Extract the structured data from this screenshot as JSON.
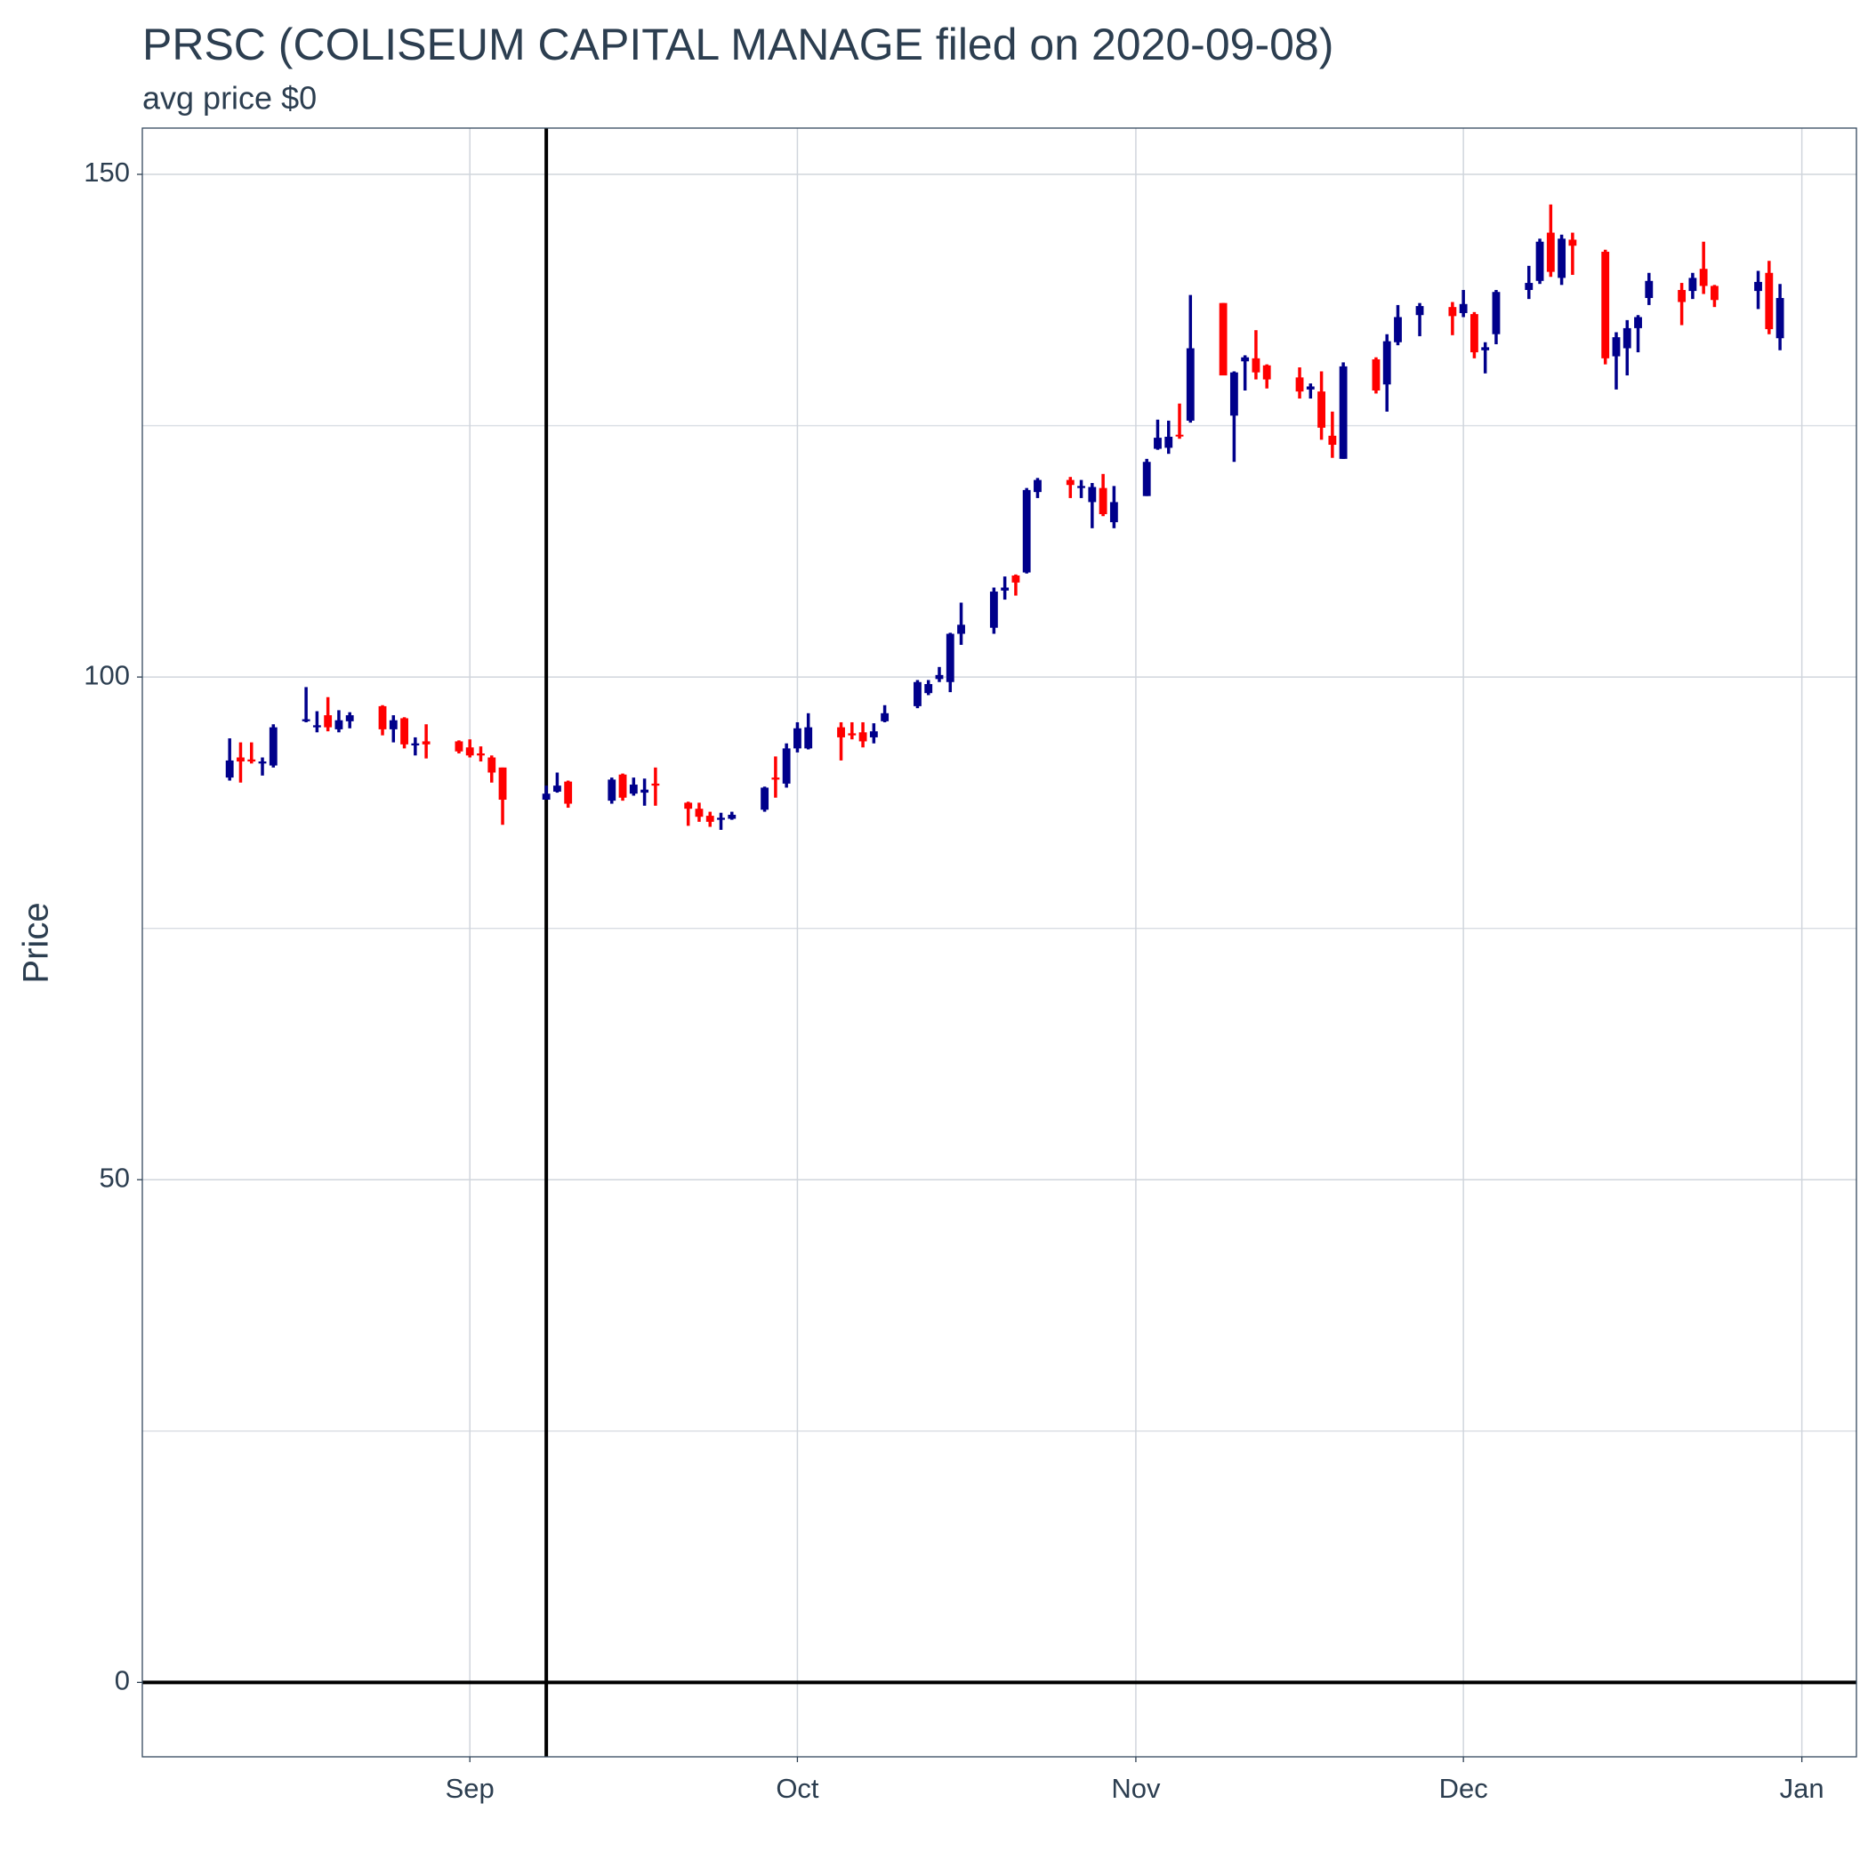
{
  "chart_data": {
    "type": "candlestick",
    "title": "PRSC (COLISEUM CAPITAL MANAGE filed on 2020-09-08)",
    "subtitle": "avg price $0",
    "y_label": "Price",
    "up_color": "#00008b",
    "down_color": "#ff0000",
    "x": [
      "2020-08-10",
      "2020-08-11",
      "2020-08-12",
      "2020-08-13",
      "2020-08-14",
      "2020-08-17",
      "2020-08-18",
      "2020-08-19",
      "2020-08-20",
      "2020-08-21",
      "2020-08-24",
      "2020-08-25",
      "2020-08-26",
      "2020-08-27",
      "2020-08-28",
      "2020-08-31",
      "2020-09-01",
      "2020-09-02",
      "2020-09-03",
      "2020-09-04",
      "2020-09-08",
      "2020-09-09",
      "2020-09-10",
      "2020-09-14",
      "2020-09-15",
      "2020-09-16",
      "2020-09-17",
      "2020-09-18",
      "2020-09-21",
      "2020-09-22",
      "2020-09-23",
      "2020-09-24",
      "2020-09-25",
      "2020-09-28",
      "2020-09-29",
      "2020-09-30",
      "2020-10-01",
      "2020-10-02",
      "2020-10-05",
      "2020-10-06",
      "2020-10-07",
      "2020-10-08",
      "2020-10-09",
      "2020-10-12",
      "2020-10-13",
      "2020-10-14",
      "2020-10-15",
      "2020-10-16",
      "2020-10-19",
      "2020-10-20",
      "2020-10-21",
      "2020-10-22",
      "2020-10-23",
      "2020-10-26",
      "2020-10-27",
      "2020-10-28",
      "2020-10-29",
      "2020-10-30",
      "2020-11-02",
      "2020-11-03",
      "2020-11-04",
      "2020-11-05",
      "2020-11-06",
      "2020-11-09",
      "2020-11-10",
      "2020-11-11",
      "2020-11-12",
      "2020-11-13",
      "2020-11-16",
      "2020-11-17",
      "2020-11-18",
      "2020-11-19",
      "2020-11-20",
      "2020-11-23",
      "2020-11-24",
      "2020-11-25",
      "2020-11-27",
      "2020-11-30",
      "2020-12-01",
      "2020-12-02",
      "2020-12-03",
      "2020-12-04",
      "2020-12-07",
      "2020-12-08",
      "2020-12-09",
      "2020-12-10",
      "2020-12-11",
      "2020-12-14",
      "2020-12-15",
      "2020-12-16",
      "2020-12-17",
      "2020-12-18",
      "2020-12-21",
      "2020-12-22",
      "2020-12-23",
      "2020-12-24",
      "2020-12-28",
      "2020-12-29",
      "2020-12-30"
    ],
    "open": [
      90.0,
      92.0,
      91.8,
      91.4,
      91.2,
      95.6,
      95.0,
      96.2,
      94.8,
      95.6,
      97.1,
      94.8,
      95.9,
      93.2,
      93.6,
      93.6,
      93.0,
      92.4,
      92.0,
      91.0,
      87.8,
      88.6,
      89.6,
      87.7,
      90.3,
      88.4,
      88.5,
      89.4,
      87.5,
      86.9,
      86.2,
      85.8,
      85.9,
      86.8,
      90.0,
      89.4,
      92.9,
      92.9,
      95.0,
      94.4,
      94.5,
      94.0,
      95.6,
      97.1,
      98.4,
      99.8,
      99.5,
      104.3,
      104.9,
      108.6,
      110.1,
      110.4,
      118.4,
      119.6,
      118.8,
      117.4,
      118.8,
      115.4,
      118.0,
      122.7,
      122.8,
      124.1,
      125.5,
      137.2,
      126.0,
      131.4,
      131.7,
      131.0,
      129.8,
      128.6,
      128.4,
      124.0,
      121.7,
      131.6,
      129.1,
      133.3,
      136.0,
      136.8,
      136.2,
      136.1,
      132.5,
      134.1,
      138.5,
      139.4,
      144.2,
      139.7,
      143.5,
      142.3,
      131.9,
      132.7,
      134.7,
      137.7,
      138.5,
      138.4,
      140.6,
      138.9,
      138.4,
      140.2,
      133.7
    ],
    "high": [
      93.9,
      93.5,
      93.5,
      92.0,
      95.3,
      99.0,
      96.6,
      98.0,
      96.7,
      96.5,
      97.2,
      96.2,
      96.0,
      94.0,
      95.3,
      93.7,
      93.8,
      93.1,
      92.2,
      91.0,
      89.2,
      90.5,
      89.7,
      90.0,
      90.4,
      90.0,
      89.9,
      91.0,
      87.6,
      87.5,
      86.6,
      86.5,
      86.6,
      89.1,
      92.1,
      93.4,
      95.5,
      96.4,
      95.5,
      95.5,
      95.5,
      95.4,
      97.2,
      99.7,
      99.7,
      101.0,
      104.4,
      107.4,
      108.9,
      110.0,
      110.2,
      118.8,
      119.8,
      119.9,
      119.6,
      119.3,
      120.2,
      119.0,
      121.7,
      125.6,
      125.5,
      127.2,
      138.0,
      137.2,
      130.4,
      132.0,
      134.5,
      131.1,
      130.8,
      129.2,
      130.4,
      126.4,
      131.3,
      131.8,
      134.1,
      137.0,
      137.2,
      137.3,
      138.5,
      136.3,
      133.3,
      138.5,
      140.9,
      143.6,
      147.0,
      144.0,
      144.2,
      142.5,
      134.3,
      135.5,
      136.0,
      140.2,
      139.2,
      140.2,
      143.3,
      139.0,
      140.4,
      141.4,
      139.1
    ],
    "low": [
      89.7,
      89.5,
      91.4,
      90.2,
      91.0,
      95.5,
      94.5,
      94.6,
      94.5,
      94.9,
      94.2,
      93.5,
      92.9,
      92.2,
      91.9,
      92.4,
      92.0,
      91.6,
      89.5,
      85.3,
      87.8,
      88.5,
      87.0,
      87.4,
      87.7,
      88.2,
      87.2,
      87.2,
      85.2,
      85.6,
      85.1,
      84.8,
      85.8,
      86.6,
      88.0,
      89.0,
      92.5,
      92.8,
      91.7,
      93.8,
      93.0,
      93.4,
      95.5,
      96.9,
      98.2,
      99.5,
      98.5,
      103.2,
      104.3,
      107.7,
      108.1,
      110.3,
      117.8,
      117.8,
      117.8,
      114.8,
      116.0,
      114.8,
      118.0,
      122.6,
      122.2,
      123.7,
      125.3,
      130.0,
      121.4,
      128.5,
      129.6,
      128.7,
      127.7,
      127.7,
      123.6,
      121.8,
      121.7,
      128.2,
      126.4,
      133.0,
      133.9,
      134.0,
      135.8,
      131.7,
      130.2,
      133.1,
      137.6,
      139.1,
      139.8,
      139.0,
      140.0,
      131.1,
      128.6,
      130.0,
      132.3,
      137.0,
      135.0,
      137.6,
      138.1,
      136.8,
      136.6,
      134.1,
      132.5
    ],
    "close": [
      91.7,
      91.6,
      91.6,
      91.6,
      95.0,
      95.8,
      95.2,
      95.0,
      95.7,
      96.2,
      94.8,
      95.7,
      93.3,
      93.4,
      93.3,
      92.6,
      92.2,
      92.2,
      90.5,
      87.8,
      88.4,
      89.2,
      87.4,
      89.8,
      88.0,
      89.3,
      88.8,
      89.2,
      86.9,
      86.1,
      85.6,
      86.0,
      86.3,
      89.0,
      89.8,
      92.9,
      94.9,
      95.0,
      94.0,
      94.2,
      93.6,
      94.6,
      96.4,
      99.5,
      99.3,
      100.2,
      104.3,
      105.2,
      108.5,
      108.9,
      109.4,
      118.6,
      119.6,
      119.1,
      119.0,
      118.9,
      116.2,
      117.4,
      121.4,
      123.8,
      123.9,
      124.0,
      132.7,
      130.0,
      130.3,
      131.8,
      130.3,
      129.6,
      128.4,
      128.9,
      124.8,
      123.1,
      130.9,
      128.5,
      133.4,
      135.8,
      136.9,
      135.9,
      137.1,
      132.3,
      132.8,
      138.3,
      139.2,
      143.3,
      140.3,
      143.6,
      142.9,
      131.7,
      133.8,
      134.7,
      135.8,
      139.4,
      137.3,
      139.7,
      138.9,
      137.5,
      139.3,
      134.6,
      137.7
    ],
    "xlim": [
      "2020-08-02",
      "2021-01-06"
    ],
    "xticks": [
      {
        "value": "2020-09-01",
        "label": "Sep"
      },
      {
        "value": "2020-10-01",
        "label": "Oct"
      },
      {
        "value": "2020-11-01",
        "label": "Nov"
      },
      {
        "value": "2020-12-01",
        "label": "Dec"
      },
      {
        "value": "2021-01-01",
        "label": "Jan"
      }
    ],
    "ylim": [
      -7.4,
      154.6
    ],
    "yticks": [
      0,
      50,
      100,
      150
    ],
    "y_minor_grid": [
      25,
      75,
      125
    ],
    "grid": true,
    "vline_x": "2020-09-08",
    "hline_y": 0
  }
}
